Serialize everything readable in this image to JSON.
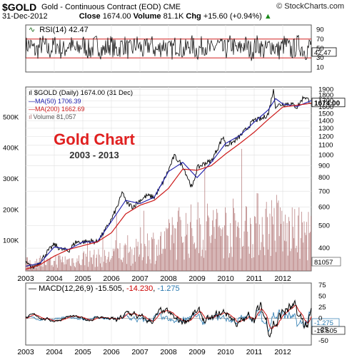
{
  "header": {
    "symbol": "$GOLD",
    "description": "Gold - Continuous Contract (EOD)",
    "exchange": "CME",
    "copyright": "© StockCharts.com",
    "date": "31-Dec-2012",
    "close_label": "Close",
    "close_value": "1674.00",
    "volume_label": "Volume",
    "volume_value": "81.1K",
    "chg_label": "Chg",
    "chg_value": "+15.60 (+0.94%)",
    "chg_arrow": "▲"
  },
  "chart_data": [
    {
      "type": "line",
      "panel": "rsi",
      "legend": "RSI(14) 42.47",
      "y_ticks": [
        90,
        70,
        50,
        30,
        10
      ],
      "reference_lines": [
        70,
        30
      ],
      "ylim": [
        0,
        100
      ],
      "last_value": "42.47",
      "colors": {
        "line": "#000000",
        "bands": "#cc0000",
        "marker": "#cc0000"
      }
    },
    {
      "type": "line",
      "panel": "price",
      "title": "Gold Chart",
      "subtitle": "2003 - 2013",
      "legend": [
        {
          "name": "$GOLD (Daily) 1674.00 (31 Dec)",
          "color": "#000000"
        },
        {
          "name": "MA(50) 1706.39",
          "color": "#1a1aaa"
        },
        {
          "name": "MA(200) 1662.69",
          "color": "#cc1a1a"
        },
        {
          "name": "Volume 81,057",
          "color": "#b08080"
        }
      ],
      "log_scale": true,
      "ylim": [
        320,
        1950
      ],
      "y_ticks": [
        1900,
        1800,
        1700,
        1600,
        1500,
        1400,
        1300,
        1200,
        1100,
        1000,
        900,
        800,
        700,
        600,
        500,
        400
      ],
      "x_ticks": [
        "2003",
        "2004",
        "2005",
        "2006",
        "2007",
        "2008",
        "2009",
        "2010",
        "2011",
        "2012"
      ],
      "last_value_label": "1674.00",
      "series": [
        {
          "name": "$GOLD",
          "x": [
            2003.0,
            2003.25,
            2003.5,
            2003.75,
            2004.0,
            2004.25,
            2004.5,
            2004.75,
            2005.0,
            2005.25,
            2005.5,
            2005.75,
            2006.0,
            2006.25,
            2006.4,
            2006.5,
            2006.75,
            2007.0,
            2007.25,
            2007.5,
            2007.75,
            2008.0,
            2008.2,
            2008.5,
            2008.83,
            2009.0,
            2009.25,
            2009.5,
            2009.92,
            2010.0,
            2010.25,
            2010.5,
            2010.75,
            2011.0,
            2011.25,
            2011.5,
            2011.67,
            2011.75,
            2012.0,
            2012.25,
            2012.5,
            2012.75,
            2013.0
          ],
          "y": [
            345,
            330,
            350,
            385,
            415,
            395,
            390,
            425,
            425,
            430,
            425,
            470,
            530,
            620,
            700,
            630,
            600,
            640,
            670,
            660,
            740,
            860,
            990,
            900,
            720,
            880,
            920,
            940,
            1200,
            1100,
            1130,
            1200,
            1300,
            1410,
            1420,
            1500,
            1900,
            1620,
            1650,
            1660,
            1600,
            1780,
            1674
          ]
        },
        {
          "name": "MA(50)",
          "x": [
            2003.0,
            2003.5,
            2004.0,
            2004.5,
            2005.0,
            2005.5,
            2006.0,
            2006.5,
            2007.0,
            2007.5,
            2008.0,
            2008.5,
            2009.0,
            2009.5,
            2010.0,
            2010.5,
            2011.0,
            2011.5,
            2011.75,
            2012.0,
            2012.5,
            2013.0
          ],
          "y": [
            335,
            345,
            405,
            395,
            425,
            425,
            520,
            640,
            620,
            660,
            850,
            930,
            800,
            930,
            1120,
            1210,
            1380,
            1560,
            1740,
            1650,
            1610,
            1706
          ]
        },
        {
          "name": "MA(200)",
          "x": [
            2003.0,
            2003.5,
            2004.0,
            2004.5,
            2005.0,
            2005.5,
            2006.0,
            2006.5,
            2007.0,
            2007.5,
            2008.0,
            2008.5,
            2009.0,
            2009.5,
            2010.0,
            2010.5,
            2011.0,
            2011.5,
            2012.0,
            2012.5,
            2013.0
          ],
          "y": [
            325,
            340,
            370,
            395,
            410,
            425,
            465,
            560,
            610,
            640,
            720,
            870,
            860,
            900,
            1010,
            1120,
            1250,
            1420,
            1600,
            1630,
            1663
          ]
        }
      ]
    },
    {
      "type": "bar",
      "panel": "volume",
      "ylabel_ticks": [
        "500K",
        "400K",
        "300K",
        "200K",
        "100K"
      ],
      "ylim": [
        0,
        600000
      ],
      "last_value_label": "81057",
      "years": [
        2003,
        2004,
        2005,
        2006,
        2007,
        2008,
        2009,
        2010,
        2011,
        2012
      ],
      "avg_volume": [
        35000,
        45000,
        55000,
        80000,
        110000,
        170000,
        180000,
        185000,
        200000,
        160000
      ],
      "color": "#b07070"
    },
    {
      "type": "line",
      "panel": "macd",
      "legend": [
        {
          "name": "MACD(12,26,9)",
          "value": "-15.505",
          "color": "#000000"
        },
        {
          "name": "",
          "value": "-14.230",
          "color": "#cc0000"
        },
        {
          "name": "",
          "value": "-1.275",
          "color": "#2a7ab0"
        }
      ],
      "y_ticks": [
        75,
        50,
        25,
        0,
        -25,
        -50
      ],
      "ylim": [
        -60,
        80
      ],
      "value_labels": [
        "-1.275",
        "-15.505"
      ],
      "x_ticks": [
        "2003",
        "2004",
        "2005",
        "2006",
        "2007",
        "2008",
        "2009",
        "2010",
        "2011",
        "2012"
      ]
    }
  ]
}
